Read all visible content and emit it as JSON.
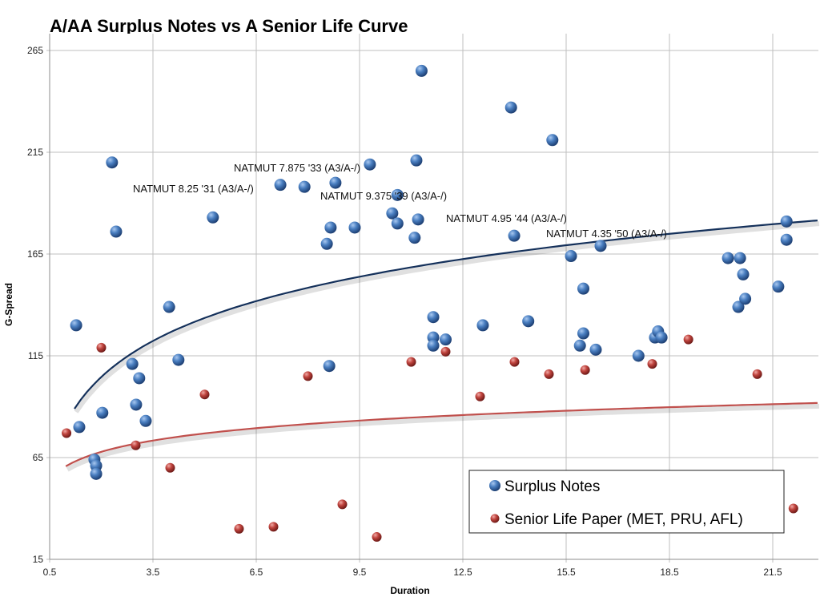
{
  "chart_data": {
    "type": "scatter",
    "title": "A/AA Surplus Notes vs A Senior Life Curve",
    "xlabel": "Duration",
    "ylabel": "G-Spread",
    "xlim": [
      0.5,
      22.8
    ],
    "ylim": [
      15,
      273
    ],
    "xticks": [
      "0.5",
      "3.5",
      "6.5",
      "9.5",
      "12.5",
      "15.5",
      "18.5",
      "21.5"
    ],
    "yticks": [
      "15",
      "65",
      "115",
      "165",
      "215",
      "265"
    ],
    "grid": true,
    "legend_placement": "bottom-right",
    "series": [
      {
        "name": "Surplus Notes",
        "color": "#3f72b5",
        "points": [
          [
            1.27,
            130
          ],
          [
            1.36,
            80
          ],
          [
            1.8,
            64
          ],
          [
            1.85,
            61
          ],
          [
            1.85,
            57
          ],
          [
            2.03,
            87
          ],
          [
            2.31,
            210
          ],
          [
            2.43,
            176
          ],
          [
            2.9,
            111
          ],
          [
            3.01,
            91
          ],
          [
            3.1,
            104
          ],
          [
            3.29,
            83
          ],
          [
            3.97,
            139
          ],
          [
            4.24,
            113
          ],
          [
            5.24,
            183
          ],
          [
            7.2,
            199
          ],
          [
            7.9,
            198
          ],
          [
            8.55,
            170
          ],
          [
            8.62,
            110
          ],
          [
            8.66,
            178
          ],
          [
            8.8,
            200
          ],
          [
            9.36,
            178
          ],
          [
            9.8,
            209
          ],
          [
            10.45,
            185
          ],
          [
            10.6,
            194
          ],
          [
            10.6,
            180
          ],
          [
            11.1,
            173
          ],
          [
            11.15,
            211
          ],
          [
            11.2,
            182
          ],
          [
            11.3,
            255
          ],
          [
            11.64,
            134
          ],
          [
            11.64,
            124
          ],
          [
            11.64,
            120
          ],
          [
            12.0,
            123
          ],
          [
            13.08,
            130
          ],
          [
            13.9,
            237
          ],
          [
            13.99,
            174
          ],
          [
            14.4,
            132
          ],
          [
            15.1,
            221
          ],
          [
            15.64,
            164
          ],
          [
            15.9,
            120
          ],
          [
            16.0,
            148
          ],
          [
            16.0,
            126
          ],
          [
            16.36,
            118
          ],
          [
            16.5,
            169
          ],
          [
            17.6,
            115
          ],
          [
            18.08,
            124
          ],
          [
            18.17,
            127
          ],
          [
            18.27,
            124
          ],
          [
            20.2,
            163
          ],
          [
            20.5,
            139
          ],
          [
            20.55,
            163
          ],
          [
            20.64,
            155
          ],
          [
            20.7,
            143
          ],
          [
            21.66,
            149
          ],
          [
            21.9,
            181
          ],
          [
            21.9,
            172
          ]
        ],
        "trend": {
          "type": "log",
          "a": 82.7,
          "b": 31.6,
          "x_range": [
            1.22,
            22.8
          ],
          "color": "#14305a"
        }
      },
      {
        "name": "Senior Life Paper (MET, PRU, AFL)",
        "color": "#b23a35",
        "points": [
          [
            0.99,
            77
          ],
          [
            2.0,
            119
          ],
          [
            3.0,
            71
          ],
          [
            4.0,
            60
          ],
          [
            5.0,
            96
          ],
          [
            6.0,
            30
          ],
          [
            7.0,
            31
          ],
          [
            8.0,
            105
          ],
          [
            9.0,
            42
          ],
          [
            10.0,
            26
          ],
          [
            11.0,
            112
          ],
          [
            12.0,
            117
          ],
          [
            13.0,
            95
          ],
          [
            14.0,
            112
          ],
          [
            15.0,
            106
          ],
          [
            16.05,
            108
          ],
          [
            18.0,
            111
          ],
          [
            19.05,
            123
          ],
          [
            21.05,
            106
          ],
          [
            22.1,
            40
          ]
        ],
        "trend": {
          "type": "log",
          "a": 61.0,
          "b": 9.85,
          "x_range": [
            0.97,
            22.8
          ],
          "color": "#c0504d"
        }
      }
    ],
    "annotations": [
      "NATMUT 7.875 '33 (A3/A-/)",
      "NATMUT 8.25 '31 (A3/A-/)",
      "NATMUT 9.375 '39 (A3/A-/)",
      "NATMUT 4.95 '44 (A3/A-/)",
      "NATMUT 4.35 '50 (A3/A-/)"
    ]
  }
}
